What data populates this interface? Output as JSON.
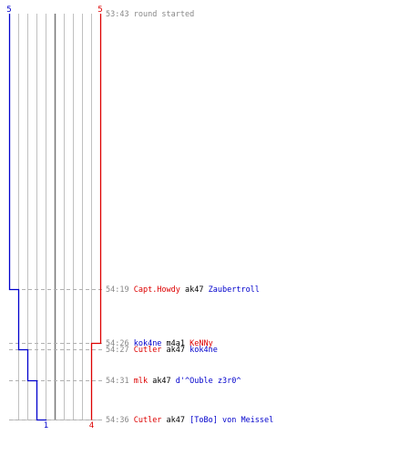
{
  "chart_data": {
    "type": "line",
    "title": "",
    "xlabel": "",
    "ylabel": "",
    "colors": {
      "team_a": "#0000cc",
      "team_b": "#dd0000",
      "time": "#888888",
      "text": "#000000",
      "grid": "#c0c0c0",
      "grid_mid": "#777777",
      "dash": "#b0b0b0"
    },
    "series": [
      {
        "name": "",
        "color": "#0000cc",
        "start_label": "5",
        "end_label": "1",
        "values": [
          5,
          4,
          3,
          2,
          1
        ]
      },
      {
        "name": "",
        "color": "#dd0000",
        "start_label": "5",
        "end_label": "4",
        "values": [
          5,
          4
        ]
      }
    ],
    "events": [
      {
        "time": "53:43",
        "parts": [
          {
            "text": "round started",
            "color": "#888888"
          }
        ]
      },
      {
        "time": "54:19",
        "parts": [
          {
            "text": "Capt.Howdy",
            "color": "#dd0000"
          },
          {
            "text": " ak47 ",
            "color": "#000000"
          },
          {
            "text": "Zaubertroll",
            "color": "#0000cc"
          }
        ]
      },
      {
        "time": "54:26",
        "parts": [
          {
            "text": "kok4ne",
            "color": "#0000cc"
          },
          {
            "text": " m4a1 ",
            "color": "#000000"
          },
          {
            "text": "KeNNy",
            "color": "#dd0000"
          }
        ]
      },
      {
        "time": "54:27",
        "parts": [
          {
            "text": "Cutler",
            "color": "#dd0000"
          },
          {
            "text": " ak47 ",
            "color": "#000000"
          },
          {
            "text": "kok4ne",
            "color": "#0000cc"
          }
        ]
      },
      {
        "time": "54:31",
        "parts": [
          {
            "text": "mlk",
            "color": "#dd0000"
          },
          {
            "text": " ak47 ",
            "color": "#000000"
          },
          {
            "text": "d'^Ouble z3r0^",
            "color": "#0000cc"
          }
        ]
      },
      {
        "time": "54:36",
        "parts": [
          {
            "text": "Cutler",
            "color": "#dd0000"
          },
          {
            "text": " ak47 ",
            "color": "#000000"
          },
          {
            "text": "[ToBo] von Meissel",
            "color": "#0000cc"
          }
        ]
      }
    ],
    "steps": [
      {
        "team": "start",
        "a": 5,
        "b": 5
      },
      {
        "team": "a",
        "a": 4,
        "b": 5
      },
      {
        "team": "b",
        "a": 4,
        "b": 4
      },
      {
        "team": "a",
        "a": 3,
        "b": 4
      },
      {
        "team": "a",
        "a": 2,
        "b": 4
      },
      {
        "team": "a",
        "a": 1,
        "b": 4
      }
    ],
    "grid": true
  }
}
